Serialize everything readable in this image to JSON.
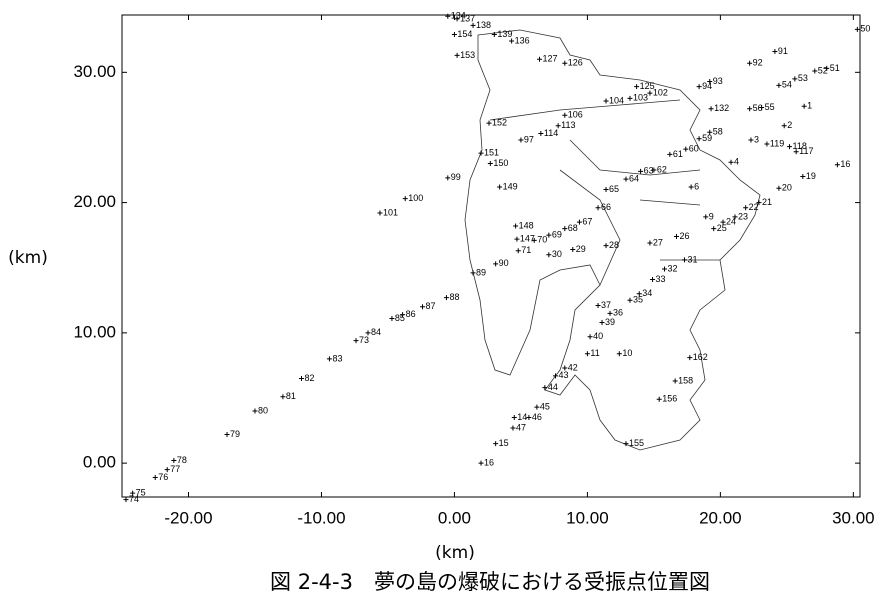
{
  "chart_data": {
    "type": "scatter",
    "title": "図 2-4-3　夢の島の爆破における受振点位置図",
    "x_label": "(km)",
    "y_label": "(km)",
    "xlim": [
      -25,
      30.5
    ],
    "ylim": [
      -2.6,
      34.4
    ],
    "xticks": [
      {
        "value": -20,
        "label": "-20.00"
      },
      {
        "value": -10,
        "label": "-10.00"
      },
      {
        "value": 0,
        "label": "0.00"
      },
      {
        "value": 10,
        "label": "10.00"
      },
      {
        "value": 20,
        "label": "20.00"
      },
      {
        "value": 30,
        "label": "30.00"
      }
    ],
    "yticks": [
      {
        "value": 0,
        "label": "0.00"
      },
      {
        "value": 10,
        "label": "10.00"
      },
      {
        "value": 20,
        "label": "20.00"
      },
      {
        "value": 30,
        "label": "30.00"
      }
    ],
    "color": "#000000",
    "point_labels": [
      "74",
      "75",
      "76",
      "77",
      "78",
      "79",
      "80",
      "81",
      "82",
      "83",
      "73",
      "84",
      "85",
      "86",
      "87",
      "88",
      "101",
      "100",
      "99",
      "134",
      "137",
      "138",
      "154",
      "153",
      "139",
      "136",
      "127",
      "126",
      "91",
      "92",
      "93",
      "50",
      "52",
      "51",
      "53",
      "54",
      "55",
      "56",
      "1",
      "2",
      "125",
      "102",
      "103",
      "104",
      "94",
      "132",
      "152",
      "97",
      "114",
      "113",
      "106",
      "151",
      "150",
      "149",
      "148",
      "147",
      "70",
      "71",
      "69",
      "68",
      "67",
      "66",
      "65",
      "64",
      "63",
      "62",
      "6",
      "61",
      "60",
      "59",
      "58",
      "3",
      "119",
      "118",
      "117",
      "4",
      "20",
      "19",
      "16",
      "21",
      "22",
      "23",
      "24",
      "25",
      "9",
      "26",
      "27",
      "28",
      "29",
      "30",
      "31",
      "32",
      "33",
      "34",
      "35",
      "36",
      "37",
      "39",
      "40",
      "10",
      "11",
      "42",
      "43",
      "44",
      "45",
      "46",
      "14",
      "47",
      "15",
      "16",
      "89",
      "90",
      "155",
      "156",
      "158",
      "162"
    ],
    "x": [
      -24.7,
      -24.2,
      -22.5,
      -21.6,
      -21.1,
      -17.1,
      -15.0,
      -12.9,
      -11.5,
      -9.4,
      -7.4,
      -6.5,
      -4.7,
      -3.9,
      -2.4,
      -0.6,
      -5.6,
      -3.7,
      -0.5,
      -0.5,
      0.2,
      1.4,
      0.0,
      0.2,
      3.0,
      4.3,
      6.4,
      8.3,
      24.1,
      22.2,
      19.2,
      30.3,
      27.1,
      28.0,
      25.6,
      24.4,
      23.1,
      22.2,
      26.3,
      24.8,
      13.7,
      14.7,
      13.2,
      11.4,
      18.4,
      19.3,
      2.6,
      5.0,
      6.5,
      7.8,
      8.3,
      2.0,
      2.7,
      3.4,
      4.6,
      4.7,
      6.0,
      4.8,
      7.1,
      8.3,
      9.4,
      10.8,
      11.4,
      12.9,
      14.0,
      15.0,
      17.8,
      16.2,
      17.4,
      18.4,
      19.2,
      22.3,
      23.5,
      25.2,
      25.7,
      20.8,
      24.4,
      26.2,
      28.8,
      22.9,
      21.9,
      21.1,
      20.2,
      19.5,
      18.9,
      16.7,
      14.7,
      11.4,
      8.9,
      7.1,
      17.3,
      15.8,
      14.9,
      13.9,
      13.2,
      11.7,
      10.8,
      11.1,
      10.2,
      12.4,
      10.0,
      8.3,
      7.6,
      6.8,
      6.2,
      5.6,
      4.5,
      4.4,
      3.1,
      2.0,
      1.4,
      3.1,
      12.9,
      15.4,
      16.6,
      17.7
    ],
    "values": [
      -2.8,
      -2.3,
      -1.1,
      -0.5,
      0.2,
      2.2,
      4.0,
      5.1,
      6.5,
      8.0,
      9.4,
      10.0,
      11.1,
      11.4,
      12.0,
      12.7,
      19.2,
      20.3,
      21.9,
      34.3,
      34.1,
      33.6,
      32.9,
      31.3,
      32.9,
      32.4,
      31.0,
      30.7,
      31.6,
      30.7,
      29.3,
      33.3,
      30.1,
      30.3,
      29.5,
      29.0,
      27.3,
      27.2,
      27.4,
      25.9,
      28.9,
      28.4,
      28.0,
      27.8,
      28.9,
      27.2,
      26.1,
      24.8,
      25.3,
      25.9,
      26.7,
      23.8,
      23.0,
      21.2,
      18.2,
      17.2,
      17.1,
      16.3,
      17.5,
      18.0,
      18.5,
      19.6,
      21.0,
      21.8,
      22.4,
      22.5,
      21.2,
      23.7,
      24.1,
      24.9,
      25.4,
      24.8,
      24.5,
      24.3,
      23.9,
      23.1,
      21.1,
      22.0,
      22.9,
      20.0,
      19.6,
      18.9,
      18.5,
      18.0,
      18.9,
      17.4,
      16.9,
      16.7,
      16.4,
      16.0,
      15.6,
      14.9,
      14.1,
      13.0,
      12.5,
      11.5,
      12.1,
      10.8,
      9.7,
      8.4,
      8.4,
      7.3,
      6.7,
      5.8,
      4.3,
      3.5,
      3.5,
      2.7,
      1.5,
      0.0,
      14.6,
      15.3,
      1.5,
      4.9,
      6.3,
      8.1
    ]
  }
}
